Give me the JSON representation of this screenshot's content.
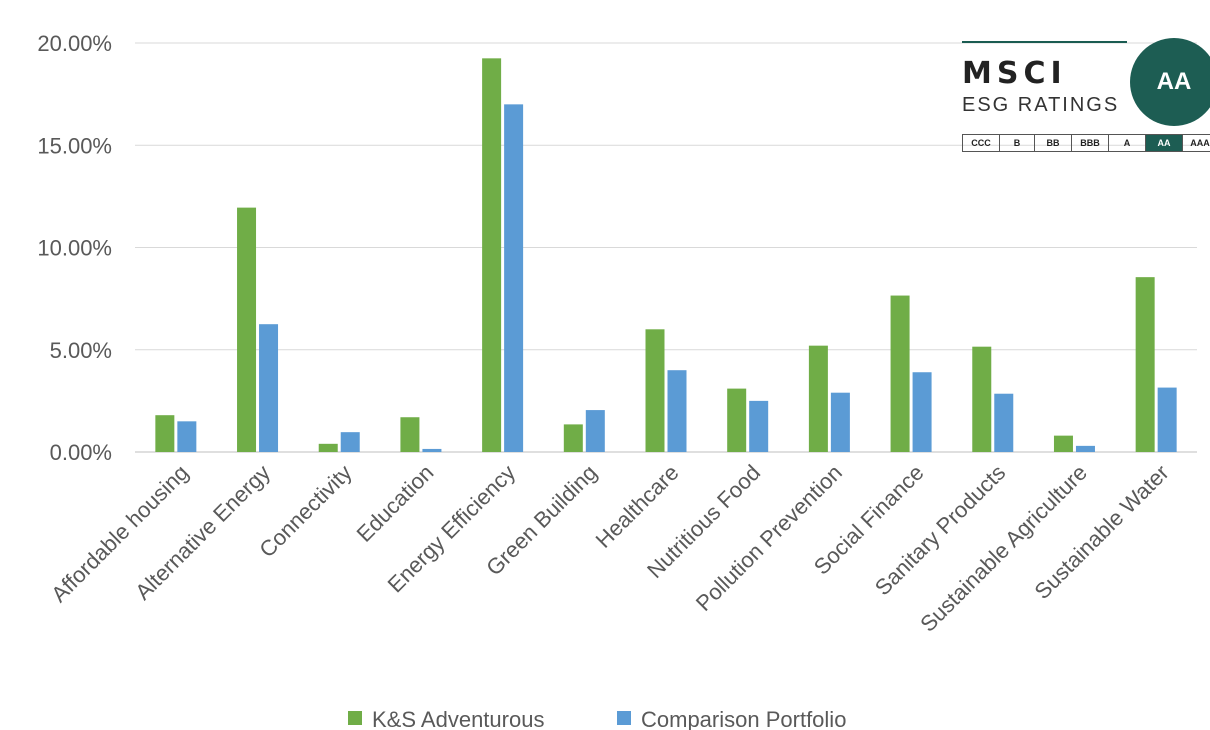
{
  "chart_data": {
    "type": "bar",
    "categories": [
      "Affordable housing",
      "Alternative Energy",
      "Connectivity",
      "Education",
      "Energy Efficiency",
      "Green Building",
      "Healthcare",
      "Nutritious Food",
      "Pollution Prevention",
      "Social Finance",
      "Sanitary Products",
      "Sustainable Agriculture",
      "Sustainable Water"
    ],
    "series": [
      {
        "name": "K&S Adventurous",
        "color": "#70ad47",
        "values": [
          1.8,
          11.95,
          0.4,
          1.7,
          19.25,
          1.35,
          6.0,
          3.1,
          5.2,
          7.65,
          5.15,
          0.8,
          8.55
        ]
      },
      {
        "name": "Comparison Portfolio",
        "color": "#5b9bd5",
        "values": [
          1.5,
          6.25,
          0.97,
          0.15,
          17.0,
          2.05,
          4.0,
          2.5,
          2.9,
          3.9,
          2.85,
          0.3,
          3.15
        ]
      }
    ],
    "yticks": [
      "0.00%",
      "5.00%",
      "10.00%",
      "15.00%",
      "20.00%"
    ],
    "ylim": [
      0,
      20
    ],
    "grid": true,
    "legend": "bottom",
    "title": "",
    "xlabel": "",
    "ylabel": ""
  },
  "badge": {
    "brand": "MSCI",
    "subtitle": "ESG RATINGS",
    "rating": "AA",
    "scale": [
      "CCC",
      "B",
      "BB",
      "BBB",
      "A",
      "AA",
      "AAA"
    ]
  }
}
